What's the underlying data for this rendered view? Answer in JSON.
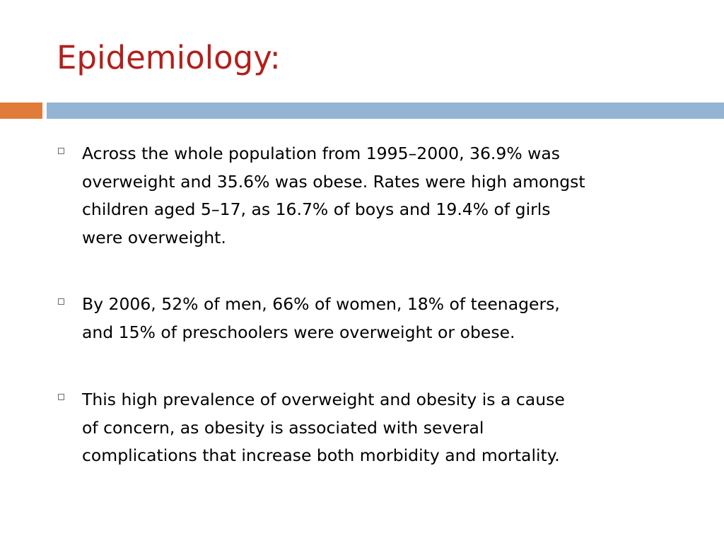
{
  "slide": {
    "title": "Epidemiology:",
    "title_color": "#b2201c",
    "accent_color": "#e07b39",
    "rule_color": "#93b4d2",
    "bullets": [
      {
        "text": "Across the whole population from 1995–2000, 36.9% was\noverweight and 35.6% was obese. Rates were high amongst\nchildren aged 5–17, as 16.7% of boys and 19.4% of girls\nwere overweight."
      },
      {
        "text": " By 2006, 52% of men, 66% of women, 18% of teenagers,\nand 15% of preschoolers were overweight or obese."
      },
      {
        "text": " This high prevalence of overweight and obesity is a cause\nof concern, as obesity is associated with several\ncomplications that increase both morbidity and mortality."
      }
    ]
  }
}
